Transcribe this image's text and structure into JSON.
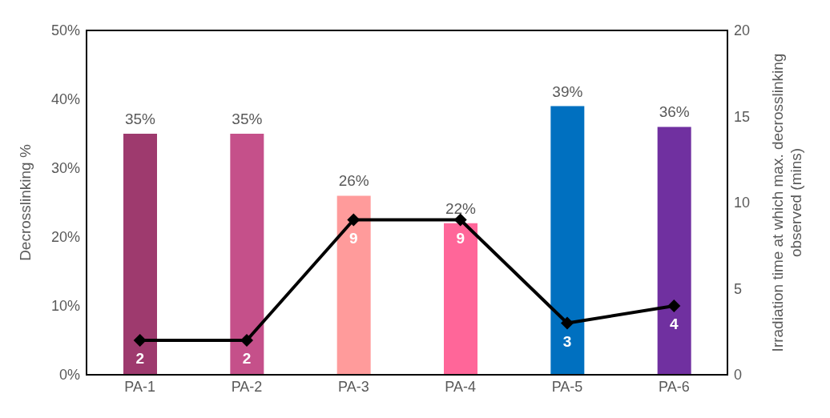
{
  "chart_data": {
    "type": "bar",
    "categories": [
      "PA-1",
      "PA-2",
      "PA-3",
      "PA-4",
      "PA-5",
      "PA-6"
    ],
    "ylabel": "Decrosslinking %",
    "y2label": "Irradiation time at which max. decrosslinking observed (mins)",
    "ylim": [
      0,
      50
    ],
    "yticks": [
      {
        "value": 0,
        "label": "0%"
      },
      {
        "value": 10,
        "label": "10%"
      },
      {
        "value": 20,
        "label": "20%"
      },
      {
        "value": 30,
        "label": "30%"
      },
      {
        "value": 40,
        "label": "40%"
      },
      {
        "value": 50,
        "label": "50%"
      }
    ],
    "y2lim": [
      0,
      20
    ],
    "y2ticks": [
      0,
      5,
      10,
      15,
      20
    ],
    "grid": false,
    "legend": false,
    "series": [
      {
        "type": "bar",
        "colors": [
          "#9e3a6e",
          "#c5508a",
          "#ff9b9b",
          "#ff6699",
          "#0070c0",
          "#7030a0"
        ],
        "values": [
          35,
          35,
          26,
          22,
          39,
          36
        ],
        "value_labels": [
          "35%",
          "35%",
          "26%",
          "22%",
          "39%",
          "36%"
        ]
      },
      {
        "type": "line",
        "axis": "y2",
        "color": "#000000",
        "marker": "diamond",
        "line_style": "solid",
        "values": [
          2,
          2,
          9,
          9,
          3,
          4
        ],
        "value_labels": [
          "2",
          "2",
          "9",
          "9",
          "3",
          "4"
        ]
      }
    ]
  }
}
